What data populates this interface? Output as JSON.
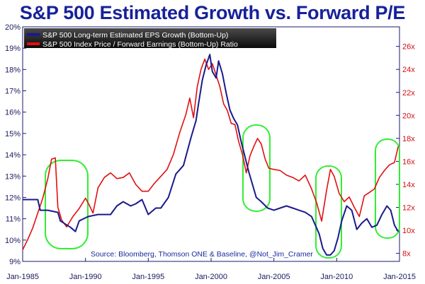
{
  "chart_data": {
    "type": "line",
    "title": "S&P 500 Estimated Growth vs. Forward P/E",
    "source": "Source: Bloomberg, Thomson ONE & Baseline, @Not_Jim_Cramer",
    "x_ticks": [
      "Jan-1985",
      "Jan-1990",
      "Jan-1995",
      "Jan-2000",
      "Jan-2005",
      "Jan-2010",
      "Jan-2015"
    ],
    "xlim": [
      1985.0,
      2015.0
    ],
    "y_left": {
      "ticks": [
        "9%",
        "10%",
        "11%",
        "12%",
        "13%",
        "14%",
        "15%",
        "16%",
        "17%",
        "18%",
        "19%",
        "20%"
      ],
      "range": [
        9,
        20
      ]
    },
    "y_right": {
      "ticks": [
        "8x",
        "10x",
        "12x",
        "14x",
        "16x",
        "18x",
        "20x",
        "22x",
        "24x",
        "26x"
      ],
      "range": [
        7.3,
        27.7
      ]
    },
    "grid": false,
    "legend_position": "top-left",
    "series": [
      {
        "name": "S&P 500 Long-term Estimated EPS Growth (Bottom-Up)",
        "axis": "left",
        "color": "#1a1a8c",
        "x": [
          1985.0,
          1986.2,
          1986.4,
          1987.0,
          1987.8,
          1988.0,
          1988.8,
          1989.2,
          1989.5,
          1990.2,
          1991.0,
          1992.0,
          1992.5,
          1993.0,
          1993.6,
          1994.0,
          1994.5,
          1995.0,
          1995.6,
          1996.0,
          1996.6,
          1997.2,
          1997.8,
          1998.4,
          1998.8,
          1999.0,
          1999.3,
          1999.6,
          1999.9,
          2000.1,
          2000.4,
          2000.6,
          2000.9,
          2001.2,
          2001.5,
          2001.8,
          2002.1,
          2002.4,
          2002.7,
          2003.0,
          2003.3,
          2003.6,
          2004.0,
          2004.5,
          2005.0,
          2005.5,
          2006.0,
          2006.5,
          2007.0,
          2007.5,
          2008.0,
          2008.3,
          2008.6,
          2008.9,
          2009.2,
          2009.5,
          2009.8,
          2010.1,
          2010.4,
          2010.8,
          2011.2,
          2011.6,
          2012.0,
          2012.4,
          2012.8,
          2013.2,
          2013.6,
          2014.0,
          2014.3,
          2014.6,
          2014.9
        ],
        "values": [
          11.9,
          11.9,
          11.4,
          11.4,
          11.3,
          10.9,
          10.6,
          10.4,
          10.9,
          11.1,
          11.2,
          11.2,
          11.6,
          11.8,
          11.6,
          11.7,
          11.9,
          11.2,
          11.5,
          11.5,
          12.0,
          13.1,
          13.5,
          14.8,
          15.6,
          16.4,
          17.5,
          18.2,
          18.7,
          17.9,
          17.6,
          18.4,
          17.8,
          16.9,
          16.1,
          15.7,
          15.4,
          14.6,
          13.9,
          13.2,
          12.6,
          12.0,
          11.8,
          11.5,
          11.4,
          11.5,
          11.6,
          11.5,
          11.4,
          11.3,
          11.1,
          10.7,
          10.3,
          9.6,
          9.3,
          9.3,
          9.5,
          10.1,
          10.9,
          11.6,
          11.4,
          10.5,
          10.8,
          11.0,
          10.6,
          10.7,
          11.2,
          11.6,
          11.4,
          10.7,
          10.4
        ]
      },
      {
        "name": "S&P 500 Index Price / Forward Earnings (Bottom-Up) Ratio",
        "axis": "right",
        "color": "#e01010",
        "x": [
          1985.0,
          1985.4,
          1985.8,
          1986.2,
          1986.6,
          1987.0,
          1987.3,
          1987.6,
          1987.8,
          1988.1,
          1988.5,
          1989.0,
          1989.5,
          1990.0,
          1990.3,
          1990.6,
          1991.0,
          1991.5,
          1992.0,
          1992.5,
          1993.0,
          1993.5,
          1994.0,
          1994.5,
          1995.0,
          1995.5,
          1996.0,
          1996.5,
          1997.0,
          1997.5,
          1998.0,
          1998.3,
          1998.6,
          1998.9,
          1999.2,
          1999.5,
          1999.8,
          2000.1,
          2000.4,
          2000.7,
          2001.0,
          2001.3,
          2001.6,
          2001.9,
          2002.2,
          2002.5,
          2002.8,
          2003.1,
          2003.4,
          2003.7,
          2004.0,
          2004.3,
          2004.6,
          2005.0,
          2005.5,
          2006.0,
          2006.5,
          2007.0,
          2007.5,
          2008.0,
          2008.4,
          2008.8,
          2009.2,
          2009.5,
          2009.8,
          2010.2,
          2010.6,
          2011.0,
          2011.4,
          2011.8,
          2012.2,
          2012.6,
          2013.0,
          2013.4,
          2013.8,
          2014.2,
          2014.6,
          2014.9
        ],
        "values": [
          8.3,
          9.2,
          10.2,
          11.5,
          12.8,
          14.5,
          16.2,
          16.3,
          12.0,
          10.9,
          10.3,
          11.2,
          11.9,
          12.8,
          12.2,
          11.5,
          13.7,
          14.6,
          15.0,
          14.5,
          14.6,
          15.0,
          14.0,
          13.4,
          13.4,
          14.1,
          14.7,
          15.3,
          16.6,
          18.5,
          20.1,
          21.5,
          19.8,
          22.5,
          24.0,
          24.9,
          24.0,
          24.5,
          23.5,
          22.5,
          21.0,
          20.4,
          19.3,
          19.2,
          17.7,
          16.6,
          15.0,
          16.5,
          17.3,
          18.0,
          17.5,
          16.2,
          15.4,
          15.3,
          15.2,
          14.8,
          14.6,
          14.3,
          14.8,
          13.6,
          12.4,
          10.8,
          13.5,
          15.3,
          14.7,
          13.2,
          12.5,
          12.9,
          12.0,
          11.2,
          13.0,
          13.3,
          13.6,
          14.6,
          15.2,
          15.7,
          15.9,
          17.3
        ]
      }
    ]
  }
}
